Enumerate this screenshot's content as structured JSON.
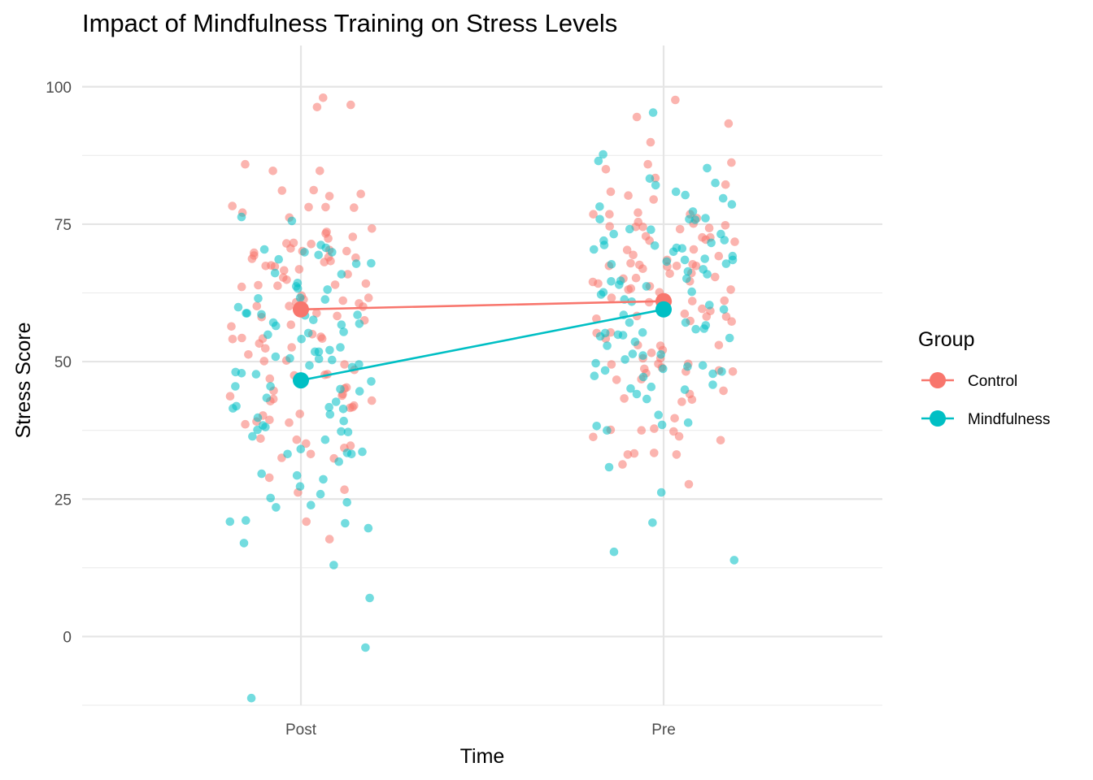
{
  "chart_data": {
    "type": "scatter",
    "title": "Impact of Mindfulness Training on Stress Levels",
    "xlabel": "Time",
    "ylabel": "Stress Score",
    "categories": [
      "Post",
      "Pre"
    ],
    "ylim": [
      -12.5,
      107.5
    ],
    "yticks": [
      0,
      25,
      50,
      75,
      100
    ],
    "grid": true,
    "legend": {
      "title": "Group",
      "position": "right"
    },
    "colors": {
      "Control": "#F8766D",
      "Mindfulness": "#00BFC4"
    },
    "series": [
      {
        "name": "Control",
        "means": [
          59.5,
          61.0
        ],
        "points": {
          "Post": [
            98,
            84.7,
            84.7,
            74.2,
            73.6,
            73.3,
            69.8,
            68.9,
            68.3,
            65.9,
            64,
            63.8,
            61.1,
            60.1,
            55,
            54.2,
            53.3,
            43.8,
            42,
            41.6,
            38.6,
            35.8,
            32.4,
            32.5,
            28.9,
            81.1,
            80.5,
            78,
            76.2,
            70.6,
            70.1,
            69.3,
            68.7,
            67.3,
            65.3,
            62,
            61.6,
            60.8,
            58.3,
            58.1,
            52.6,
            48.5,
            45.3,
            43.2,
            35.1,
            34.7,
            17.7,
            85.9,
            81.2,
            77.1,
            72.4,
            71.5,
            70.3,
            67.4,
            66.6,
            64.9,
            60.1,
            57.5,
            56.7,
            54.1,
            52.4,
            51.3,
            47.6,
            43.7,
            42.8,
            39.4,
            38.9,
            36,
            34.3,
            26.2,
            20.9,
            96.7,
            96.3,
            80.1,
            78.3,
            78.1,
            71.6,
            70.1,
            68.1,
            67.5,
            66.8,
            64.2,
            63.9,
            61.3,
            60.6,
            58.8,
            56.4,
            54.5,
            54.2,
            50.2,
            49.5,
            47.7,
            46.9,
            44.1,
            42.9,
            40.5,
            39.1,
            33.2,
            78.1,
            72.7,
            71.4,
            69,
            63.6,
            60,
            54.3,
            50.1,
            47.5,
            45.1,
            44.7,
            41.7,
            40.2,
            26.7
          ],
          "Pre": [
            89.9,
            79.5,
            76.8,
            75.4,
            75.1,
            72.6,
            72.2,
            71.8,
            67.4,
            65.4,
            65.2,
            64.5,
            63.1,
            60.9,
            58.7,
            57.4,
            49.6,
            48.9,
            48.2,
            44.7,
            44.1,
            37.6,
            37.3,
            31.3,
            27.7,
            83.4,
            77.1,
            76.8,
            74.5,
            72.8,
            70.3,
            67.6,
            67.4,
            66,
            63.1,
            61,
            60.5,
            59.2,
            58.2,
            53,
            52.9,
            50.6,
            49.5,
            48.4,
            46.8,
            36.3,
            36.4,
            85.9,
            85,
            80.9,
            76.8,
            74.6,
            72.6,
            70.4,
            67.7,
            66.9,
            65.1,
            62.6,
            61.1,
            58.3,
            54.2,
            53,
            50.6,
            48.2,
            43.3,
            33.1,
            97.6,
            86.2,
            80.2,
            76.1,
            74.5,
            74.3,
            69.4,
            68.5,
            67.4,
            67.3,
            66.1,
            64.6,
            63.3,
            61.6,
            59.6,
            57.8,
            55.3,
            52.1,
            49.6,
            48.7,
            43.1,
            42.7,
            39.7,
            37.5,
            37.8,
            33.4,
            33.1,
            94.5,
            82.2,
            74.8,
            74.1,
            72,
            69.2,
            67.9,
            64.2,
            63.7,
            60.8,
            58.2,
            57.3,
            55.2,
            51.6,
            47.9,
            46.7,
            35.7,
            33.3,
            93.3
          ]
        }
      },
      {
        "name": "Mindfulness",
        "means": [
          46.6,
          59.5
        ],
        "points": {
          "Post": [
            69.9,
            67.9,
            65.9,
            63.7,
            61.3,
            58.5,
            57.1,
            56.7,
            51.8,
            50.5,
            49.3,
            47.9,
            44.6,
            42.7,
            41.5,
            28.6,
            25.2,
            24.4,
            13,
            -2,
            69.9,
            67.8,
            61.5,
            58.8,
            58.6,
            56.9,
            55.4,
            54.9,
            50.9,
            49,
            45,
            41.7,
            40.4,
            39.8,
            37.2,
            33.4,
            31.8,
            29.6,
            -11.2,
            76.3,
            70.4,
            68.6,
            63.3,
            61.6,
            59.9,
            56.5,
            51.8,
            49.5,
            47.7,
            45.5,
            38.1,
            37.3,
            34.1,
            25.9,
            23.9,
            21.1,
            20.6,
            75.6,
            71.2,
            69.4,
            66.1,
            58.8,
            57.6,
            55.2,
            52.6,
            50.6,
            48.1,
            46.4,
            41.4,
            39.2,
            38.4,
            37.6,
            35.8,
            33.6,
            33.2,
            29.3,
            19.7,
            70.7,
            64.3,
            63.1,
            58.4,
            54.1,
            52.1,
            50.3,
            45.5,
            43.4,
            41.9,
            36.4,
            33.2,
            27.3,
            23.5,
            20.9,
            17,
            7
          ],
          "Pre": [
            85.2,
            80.9,
            78.6,
            76.1,
            75.8,
            71.6,
            68.5,
            68.5,
            66.4,
            64.6,
            56.6,
            51.1,
            49.1,
            48.7,
            48.2,
            40.3,
            38.3,
            38.9,
            30.8,
            15.4,
            13.9,
            83.3,
            82.1,
            75.9,
            72.1,
            71.1,
            70.6,
            69.2,
            68.7,
            66.8,
            63.7,
            58.5,
            55.9,
            54.6,
            49.7,
            45.8,
            45.4,
            82.5,
            80.3,
            74.1,
            73.2,
            71.2,
            70.7,
            70,
            65.1,
            62.6,
            60.9,
            57.1,
            55.2,
            54.9,
            52.9,
            51.4,
            47.8,
            37.5,
            26.2,
            79.7,
            78.2,
            77.3,
            75.9,
            74,
            70.4,
            67.7,
            64.7,
            62.7,
            60.3,
            57.1,
            54.8,
            51.3,
            50.4,
            49.3,
            47.4,
            45.1,
            44.1,
            43.2,
            20.7,
            95.3,
            87.7,
            86.5,
            73.2,
            72,
            68.2,
            67.8,
            65.9,
            64,
            62.2,
            61.3,
            59.5,
            56,
            55.3,
            54.3,
            53.6,
            48.4,
            47.2,
            44.9,
            38.5
          ]
        }
      }
    ]
  }
}
